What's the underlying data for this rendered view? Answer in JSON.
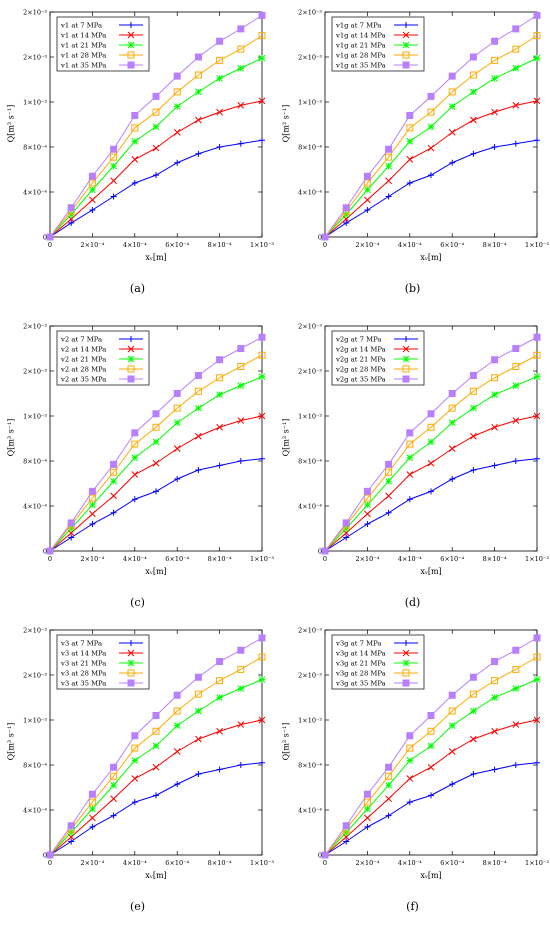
{
  "figure": {
    "x_tick_labels": [
      "0",
      "2×10⁻⁴",
      "4×10⁻⁴",
      "6×10⁻⁴",
      "8×10⁻⁴",
      "1×10⁻³"
    ],
    "y_tick_labels": [
      "0",
      "4×10⁻⁴",
      "8×10⁻⁴",
      "1×10⁻³",
      "2×10⁻³",
      "2×10⁻³"
    ],
    "xlabel": "xᵥ[m]",
    "ylabel": "Q[m³ s⁻¹]",
    "colors": [
      "#0000ff",
      "#ff0000",
      "#00ff00",
      "#ffaa00",
      "#b87fff"
    ],
    "markers": [
      "plus",
      "cross",
      "star",
      "square",
      "filled-square"
    ]
  },
  "chart_data": [
    {
      "type": "line",
      "caption": "(a)",
      "x": [
        0,
        0.0001,
        0.0002,
        0.0003,
        0.0004,
        0.0005,
        0.0006,
        0.0007,
        0.0008,
        0.0009,
        0.001
      ],
      "xlim": [
        0,
        0.001
      ],
      "ylim": [
        0,
        0.002
      ],
      "series": [
        {
          "name": "v1 at 7 MPa",
          "values": [
            0,
            0.000125,
            0.00024,
            0.00036,
            0.00048,
            0.00055,
            0.00066,
            0.00074,
            0.0008,
            0.00083,
            0.00086
          ]
        },
        {
          "name": "v1 at 14 MPa",
          "values": [
            0,
            0.00016,
            0.00033,
            0.0005,
            0.00069,
            0.00079,
            0.00093,
            0.00104,
            0.00111,
            0.00117,
            0.00121
          ]
        },
        {
          "name": "v1 at 21 MPa",
          "values": [
            0,
            0.0002,
            0.00042,
            0.00063,
            0.00085,
            0.00098,
            0.00116,
            0.00129,
            0.00141,
            0.0015,
            0.00159
          ]
        },
        {
          "name": "v1 at 28 MPa",
          "values": [
            0,
            0.00023,
            0.00048,
            0.00071,
            0.00097,
            0.00111,
            0.00129,
            0.00144,
            0.00157,
            0.00167,
            0.00179
          ]
        },
        {
          "name": "v1 at 35 MPa",
          "values": [
            0,
            0.00026,
            0.00054,
            0.00078,
            0.00108,
            0.00125,
            0.00143,
            0.0016,
            0.00174,
            0.00185,
            0.00197
          ]
        }
      ]
    },
    {
      "type": "line",
      "caption": "(b)",
      "x": [
        0,
        0.0001,
        0.0002,
        0.0003,
        0.0004,
        0.0005,
        0.0006,
        0.0007,
        0.0008,
        0.0009,
        0.001
      ],
      "xlim": [
        0,
        0.001
      ],
      "ylim": [
        0,
        0.002
      ],
      "series": [
        {
          "name": "v1g at 7 MPa",
          "values": [
            0,
            0.000125,
            0.00024,
            0.00036,
            0.00048,
            0.00055,
            0.00066,
            0.00074,
            0.0008,
            0.00083,
            0.00086
          ]
        },
        {
          "name": "v1g at 14 MPa",
          "values": [
            0,
            0.00016,
            0.00033,
            0.0005,
            0.00069,
            0.00079,
            0.00093,
            0.00104,
            0.00111,
            0.00117,
            0.00121
          ]
        },
        {
          "name": "v1g at 21 MPa",
          "values": [
            0,
            0.0002,
            0.00042,
            0.00063,
            0.00085,
            0.00098,
            0.00116,
            0.00129,
            0.00141,
            0.0015,
            0.00159
          ]
        },
        {
          "name": "v1g at 28 MPa",
          "values": [
            0,
            0.00023,
            0.00048,
            0.00071,
            0.00097,
            0.00111,
            0.00129,
            0.00144,
            0.00157,
            0.00167,
            0.00179
          ]
        },
        {
          "name": "v1g at 35 MPa",
          "values": [
            0,
            0.00026,
            0.00054,
            0.00078,
            0.00108,
            0.00125,
            0.00143,
            0.0016,
            0.00174,
            0.00185,
            0.00197
          ]
        }
      ]
    },
    {
      "type": "line",
      "caption": "(c)",
      "x": [
        0,
        0.0001,
        0.0002,
        0.0003,
        0.0004,
        0.0005,
        0.0006,
        0.0007,
        0.0008,
        0.0009,
        0.001
      ],
      "xlim": [
        0,
        0.001
      ],
      "ylim": [
        0,
        0.002
      ],
      "series": [
        {
          "name": "v2 at 7 MPa",
          "values": [
            0,
            0.00012,
            0.00024,
            0.00034,
            0.00046,
            0.00053,
            0.00064,
            0.00072,
            0.00076,
            0.0008,
            0.00082
          ]
        },
        {
          "name": "v2 at 14 MPa",
          "values": [
            0,
            0.00016,
            0.00033,
            0.00049,
            0.00068,
            0.00078,
            0.00091,
            0.00102,
            0.0011,
            0.00116,
            0.0012
          ]
        },
        {
          "name": "v2 at 21 MPa",
          "values": [
            0,
            0.0002,
            0.00041,
            0.00062,
            0.00083,
            0.00097,
            0.00114,
            0.00127,
            0.00139,
            0.00147,
            0.00155
          ]
        },
        {
          "name": "v2 at 28 MPa",
          "values": [
            0,
            0.00023,
            0.00047,
            0.0007,
            0.00095,
            0.0011,
            0.00127,
            0.00142,
            0.00154,
            0.00164,
            0.00174
          ]
        },
        {
          "name": "v2 at 35 MPa",
          "values": [
            0,
            0.00025,
            0.00053,
            0.00077,
            0.00105,
            0.00122,
            0.0014,
            0.00156,
            0.0017,
            0.0018,
            0.0019
          ]
        }
      ]
    },
    {
      "type": "line",
      "caption": "(d)",
      "x": [
        0,
        0.0001,
        0.0002,
        0.0003,
        0.0004,
        0.0005,
        0.0006,
        0.0007,
        0.0008,
        0.0009,
        0.001
      ],
      "xlim": [
        0,
        0.001
      ],
      "ylim": [
        0,
        0.002
      ],
      "series": [
        {
          "name": "v2g at 7 MPa",
          "values": [
            0,
            0.00012,
            0.00024,
            0.00034,
            0.00046,
            0.00053,
            0.00064,
            0.00072,
            0.00076,
            0.0008,
            0.00082
          ]
        },
        {
          "name": "v2g at 14 MPa",
          "values": [
            0,
            0.00016,
            0.00033,
            0.00049,
            0.00068,
            0.00078,
            0.00091,
            0.00102,
            0.0011,
            0.00116,
            0.0012
          ]
        },
        {
          "name": "v2g at 21 MPa",
          "values": [
            0,
            0.0002,
            0.00041,
            0.00062,
            0.00083,
            0.00097,
            0.00114,
            0.00127,
            0.00139,
            0.00147,
            0.00155
          ]
        },
        {
          "name": "v2g at 28 MPa",
          "values": [
            0,
            0.00023,
            0.00047,
            0.0007,
            0.00095,
            0.0011,
            0.00127,
            0.00142,
            0.00154,
            0.00164,
            0.00174
          ]
        },
        {
          "name": "v2g at 35 MPa",
          "values": [
            0,
            0.00025,
            0.00053,
            0.00077,
            0.00105,
            0.00122,
            0.0014,
            0.00156,
            0.0017,
            0.0018,
            0.0019
          ]
        }
      ]
    },
    {
      "type": "line",
      "caption": "(e)",
      "x": [
        0,
        0.0001,
        0.0002,
        0.0003,
        0.0004,
        0.0005,
        0.0006,
        0.0007,
        0.0008,
        0.0009,
        0.001
      ],
      "xlim": [
        0,
        0.001
      ],
      "ylim": [
        0,
        0.002
      ],
      "series": [
        {
          "name": "v3 at 7 MPa",
          "values": [
            0,
            0.00012,
            0.00025,
            0.00035,
            0.00047,
            0.00053,
            0.00063,
            0.00072,
            0.00076,
            0.0008,
            0.00082
          ]
        },
        {
          "name": "v3 at 14 MPa",
          "values": [
            0,
            0.00016,
            0.00033,
            0.0005,
            0.00068,
            0.00078,
            0.00092,
            0.00103,
            0.0011,
            0.00116,
            0.0012
          ]
        },
        {
          "name": "v3 at 21 MPa",
          "values": [
            0,
            0.0002,
            0.00041,
            0.00062,
            0.00084,
            0.00097,
            0.00115,
            0.00128,
            0.0014,
            0.00148,
            0.00156
          ]
        },
        {
          "name": "v3 at 28 MPa",
          "values": [
            0,
            0.00023,
            0.00047,
            0.0007,
            0.00095,
            0.0011,
            0.00128,
            0.00143,
            0.00155,
            0.00165,
            0.00176
          ]
        },
        {
          "name": "v3 at 35 MPa",
          "values": [
            0,
            0.00026,
            0.00054,
            0.00078,
            0.00106,
            0.00124,
            0.00142,
            0.00158,
            0.00172,
            0.00182,
            0.00193
          ]
        }
      ]
    },
    {
      "type": "line",
      "caption": "(f)",
      "x": [
        0,
        0.0001,
        0.0002,
        0.0003,
        0.0004,
        0.0005,
        0.0006,
        0.0007,
        0.0008,
        0.0009,
        0.001
      ],
      "xlim": [
        0,
        0.001
      ],
      "ylim": [
        0,
        0.002
      ],
      "series": [
        {
          "name": "v3g at 7 MPa",
          "values": [
            0,
            0.00012,
            0.00025,
            0.00035,
            0.00047,
            0.00053,
            0.00063,
            0.00072,
            0.00076,
            0.0008,
            0.00082
          ]
        },
        {
          "name": "v3g at 14 MPa",
          "values": [
            0,
            0.00016,
            0.00033,
            0.0005,
            0.00068,
            0.00078,
            0.00092,
            0.00103,
            0.0011,
            0.00116,
            0.0012
          ]
        },
        {
          "name": "v3g at 21 MPa",
          "values": [
            0,
            0.0002,
            0.00041,
            0.00062,
            0.00084,
            0.00097,
            0.00115,
            0.00128,
            0.0014,
            0.00148,
            0.00156
          ]
        },
        {
          "name": "v3g at 28 MPa",
          "values": [
            0,
            0.00023,
            0.00047,
            0.0007,
            0.00095,
            0.0011,
            0.00128,
            0.00143,
            0.00155,
            0.00165,
            0.00176
          ]
        },
        {
          "name": "v3g at 35 MPa",
          "values": [
            0,
            0.00026,
            0.00054,
            0.00078,
            0.00106,
            0.00124,
            0.00142,
            0.00158,
            0.00172,
            0.00182,
            0.00193
          ]
        }
      ]
    }
  ]
}
